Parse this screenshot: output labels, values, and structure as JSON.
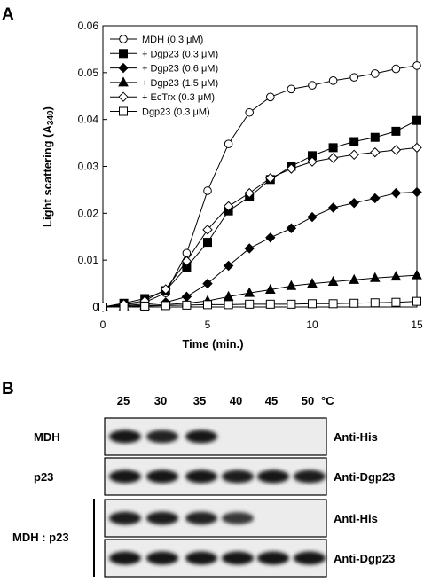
{
  "panel_a_label": "A",
  "panel_b_label": "B",
  "chart_data": {
    "type": "line",
    "xlabel": "Time (min.)",
    "ylabel": "Light scattering (A340)",
    "xlim": [
      0,
      15
    ],
    "ylim": [
      0,
      0.06
    ],
    "xticks": [
      0,
      5,
      10,
      15
    ],
    "yticks": [
      0,
      0.01,
      0.02,
      0.03,
      0.04,
      0.05,
      0.06
    ],
    "ytick_labels": [
      "0",
      "0.01",
      "0.02",
      "0.03",
      "0.04",
      "0.05",
      "0.06"
    ],
    "grid": false,
    "legend_position": "top-left",
    "series": [
      {
        "name": "MDH (0.3 μM)",
        "marker": "circle-open",
        "x": [
          0,
          1,
          2,
          3,
          4,
          5,
          6,
          7,
          8,
          9,
          10,
          11,
          12,
          13,
          14,
          15
        ],
        "y": [
          0,
          0.0005,
          0.001,
          0.003,
          0.0115,
          0.0248,
          0.0348,
          0.0415,
          0.0448,
          0.0465,
          0.0473,
          0.0483,
          0.049,
          0.0498,
          0.0508,
          0.0515
        ]
      },
      {
        "name": "+ Dgp23 (0.3 μM)",
        "marker": "square-filled",
        "x": [
          0,
          1,
          2,
          3,
          4,
          5,
          6,
          7,
          8,
          9,
          10,
          11,
          12,
          13,
          14,
          15
        ],
        "y": [
          0,
          0.0008,
          0.0018,
          0.0035,
          0.0085,
          0.0138,
          0.0205,
          0.0235,
          0.0272,
          0.03,
          0.0323,
          0.034,
          0.0353,
          0.0362,
          0.0375,
          0.0398
        ]
      },
      {
        "name": "+ Dgp23 (0.6 μM)",
        "marker": "diamond-filled",
        "x": [
          0,
          1,
          2,
          3,
          4,
          5,
          6,
          7,
          8,
          9,
          10,
          11,
          12,
          13,
          14,
          15
        ],
        "y": [
          0,
          0.0003,
          0.0006,
          0.001,
          0.0022,
          0.005,
          0.0088,
          0.0125,
          0.0148,
          0.0168,
          0.0192,
          0.0212,
          0.0222,
          0.0232,
          0.0243,
          0.0245
        ]
      },
      {
        "name": "+ Dgp23 (1.5 μM)",
        "marker": "triangle-filled",
        "x": [
          0,
          1,
          2,
          3,
          4,
          5,
          6,
          7,
          8,
          9,
          10,
          11,
          12,
          13,
          14,
          15
        ],
        "y": [
          0,
          0.0002,
          0.0003,
          0.0005,
          0.0008,
          0.0013,
          0.0022,
          0.003,
          0.0037,
          0.0045,
          0.005,
          0.0054,
          0.0058,
          0.0062,
          0.0065,
          0.0068
        ]
      },
      {
        "name": "+ EcTrx (0.3 μM)",
        "marker": "diamond-open",
        "x": [
          0,
          1,
          2,
          3,
          4,
          5,
          6,
          7,
          8,
          9,
          10,
          11,
          12,
          13,
          14,
          15
        ],
        "y": [
          0,
          0.0006,
          0.0013,
          0.0038,
          0.0098,
          0.0165,
          0.0215,
          0.0243,
          0.0275,
          0.0295,
          0.031,
          0.0318,
          0.0325,
          0.033,
          0.0335,
          0.034
        ]
      },
      {
        "name": "Dgp23 (0.3 μM)",
        "marker": "square-open",
        "x": [
          0,
          1,
          2,
          3,
          4,
          5,
          6,
          7,
          8,
          9,
          10,
          11,
          12,
          13,
          14,
          15
        ],
        "y": [
          0,
          0,
          0.0002,
          0.0003,
          0.0004,
          0.0005,
          0.0005,
          0.0006,
          0.0006,
          0.0006,
          0.0007,
          0.0007,
          0.0008,
          0.0009,
          0.001,
          0.0012
        ]
      }
    ]
  },
  "blot": {
    "temperatures": [
      "25",
      "30",
      "35",
      "40",
      "45",
      "50"
    ],
    "temp_unit": "°C",
    "rows": [
      {
        "left_label": "MDH",
        "right_label": "Anti-His",
        "bands": [
          1,
          0.85,
          0.95,
          0,
          0,
          0
        ]
      },
      {
        "left_label": "p23",
        "right_label": "Anti-Dgp23",
        "bands": [
          1,
          1,
          1,
          0.9,
          1,
          0.9
        ]
      },
      {
        "right_label": "Anti-His",
        "bands": [
          0.9,
          0.9,
          0.85,
          0.6,
          0,
          0
        ]
      },
      {
        "right_label": "Anti-Dgp23",
        "bands": [
          1,
          1,
          1,
          1,
          1,
          1
        ]
      }
    ],
    "group_label": "MDH : p23"
  }
}
